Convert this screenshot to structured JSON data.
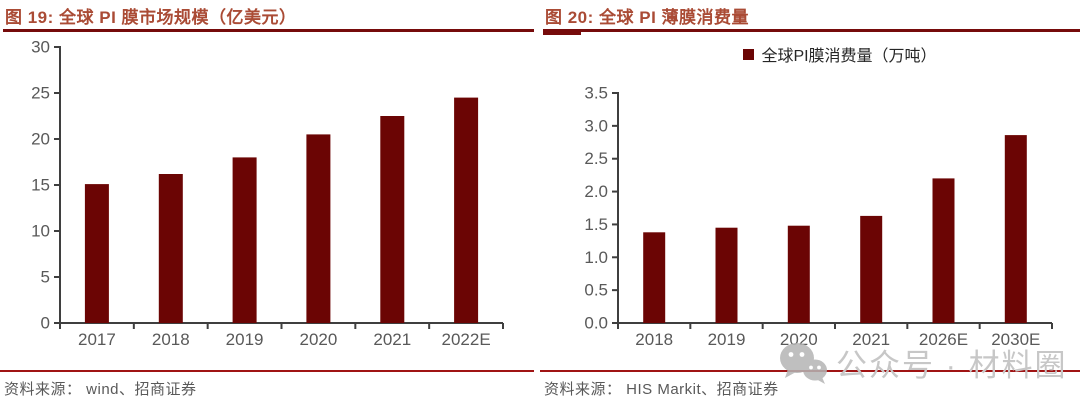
{
  "colors": {
    "bar": "#6B0504",
    "figure_title": "#AA4B35",
    "title_rule": "#760B0B",
    "source_rule": "#A01414",
    "axis": "#3F3F3F",
    "tick_label": "#595959",
    "watermark": "#C7C7C7"
  },
  "figures": [
    {
      "title": "图 19:  全球 PI 膜市场规模（亿美元）",
      "source": "资料来源：  wind、招商证券",
      "chart_data": {
        "type": "bar",
        "title": "全球 PI 膜市场规模（亿美元）",
        "categories": [
          "2017",
          "2018",
          "2019",
          "2020",
          "2021",
          "2022E"
        ],
        "values": [
          15.1,
          16.2,
          18.0,
          20.5,
          22.5,
          24.5
        ],
        "xlabel": "",
        "ylabel": "",
        "ylim": [
          0,
          30
        ],
        "yticks": [
          0,
          5,
          10,
          15,
          20,
          25,
          30
        ],
        "ytick_labels": [
          "0",
          "5",
          "10",
          "15",
          "20",
          "25",
          "30"
        ],
        "grid": false,
        "legend_position": "none",
        "bar_color": "#6B0504"
      }
    },
    {
      "title": "图 20:  全球 PI 薄膜消费量",
      "legend": "全球PI膜消费量（万吨）",
      "source": "资料来源：  HIS Markit、招商证券",
      "chart_data": {
        "type": "bar",
        "title": "全球 PI 薄膜消费量",
        "series_name": "全球PI膜消费量（万吨）",
        "categories": [
          "2018",
          "2019",
          "2020",
          "2021",
          "2026E",
          "2030E"
        ],
        "values": [
          1.38,
          1.45,
          1.48,
          1.63,
          2.2,
          2.86
        ],
        "xlabel": "",
        "ylabel": "",
        "ylim": [
          0,
          3.5
        ],
        "yticks": [
          0,
          0.5,
          1.0,
          1.5,
          2.0,
          2.5,
          3.0,
          3.5
        ],
        "ytick_labels": [
          "0.0",
          "0.5",
          "1.0",
          "1.5",
          "2.0",
          "2.5",
          "3.0",
          "3.5"
        ],
        "grid": false,
        "legend_position": "top-center",
        "bar_color": "#6B0504"
      }
    }
  ],
  "watermark": {
    "icon": "wechat-icon",
    "text": "公众号 · 材料圈"
  }
}
